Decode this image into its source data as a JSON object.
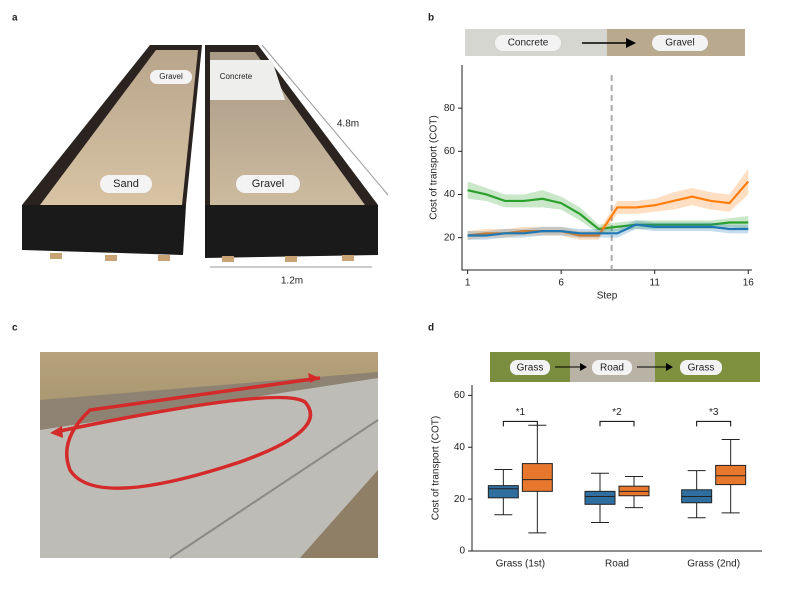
{
  "figure": {
    "panel_labels": [
      "a",
      "b",
      "c",
      "d"
    ],
    "photo_a_labels": [
      "Gravel",
      "Concrete",
      "Sand",
      "Gravel",
      "4.8m",
      "1.2m"
    ]
  },
  "chart_data": [
    {
      "type": "line",
      "banner": [
        "Concrete",
        "Gravel"
      ],
      "x_label": "Step",
      "y_label": "Cost of transport (COT)",
      "x": [
        1,
        2,
        3,
        4,
        5,
        6,
        7,
        8,
        9,
        10,
        11,
        12,
        13,
        14,
        15,
        16
      ],
      "series": [
        {
          "color": "#2ca02c",
          "values": [
            42,
            40,
            37,
            37,
            38,
            36,
            31,
            24,
            25,
            26,
            26,
            26,
            26,
            26,
            27,
            27
          ],
          "band": [
            4,
            3,
            3,
            3,
            4,
            3,
            3,
            2,
            2,
            2,
            2,
            2,
            2,
            2,
            2,
            3
          ]
        },
        {
          "color": "#ff7f0e",
          "values": [
            21,
            22,
            22,
            23,
            23,
            23,
            21,
            21,
            34,
            34,
            35,
            37,
            39,
            37,
            36,
            46
          ],
          "band": [
            2,
            2,
            2,
            2,
            2,
            2,
            2,
            2,
            3,
            3,
            3,
            4,
            4,
            4,
            4,
            6
          ]
        },
        {
          "color": "#1f77b4",
          "values": [
            21,
            21,
            22,
            22,
            23,
            23,
            22,
            22,
            22,
            26,
            25,
            25,
            25,
            25,
            24,
            24
          ],
          "band": [
            2,
            2,
            2,
            2,
            2,
            2,
            2,
            2,
            2,
            2,
            2,
            2,
            2,
            2,
            2,
            2
          ]
        }
      ],
      "vline": 8.7,
      "xlim": [
        0.7,
        16.2
      ],
      "xticks": [
        1,
        6,
        11,
        16
      ],
      "ylim": [
        5,
        100
      ],
      "yticks": [
        20,
        40,
        60,
        80
      ]
    },
    {
      "type": "box",
      "banner": [
        "Grass",
        "Road",
        "Grass"
      ],
      "y_label": "Cost of transport (COT)",
      "categories": [
        "Grass (1st)",
        "Road",
        "Grass (2nd)"
      ],
      "annotations": [
        "*1",
        "*2",
        "*3"
      ],
      "series": [
        {
          "color": "#2f6fa0",
          "values": [
            [
              14,
              20.5,
              24,
              25.2,
              31.4
            ],
            [
              11,
              18,
              21,
              23,
              30
            ],
            [
              12.8,
              18.6,
              21,
              23.6,
              31
            ]
          ]
        },
        {
          "color": "#e8772e",
          "values": [
            [
              7,
              23,
              27.5,
              33.7,
              48.5
            ],
            [
              16.7,
              21.3,
              23,
              25,
              28.7
            ],
            [
              14.7,
              25.6,
              29,
              33,
              43
            ]
          ]
        }
      ],
      "ylim": [
        0,
        64
      ],
      "yticks": [
        0,
        20,
        40,
        60
      ]
    }
  ]
}
